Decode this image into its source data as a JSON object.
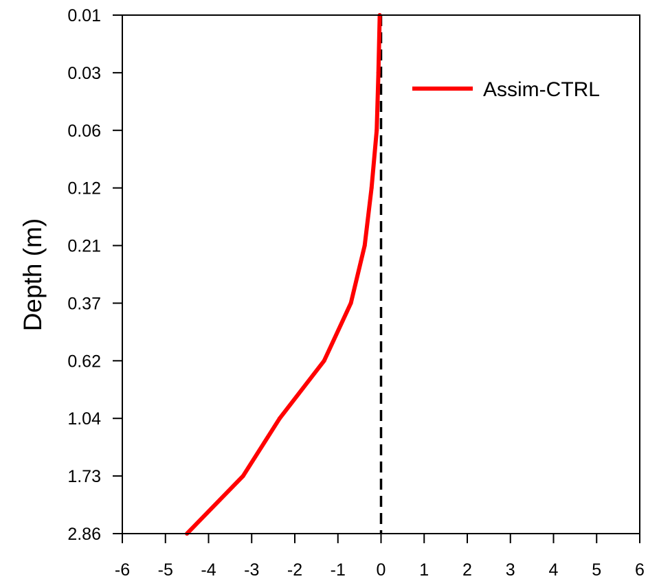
{
  "chart_data": {
    "type": "line",
    "title": "",
    "xlabel": "",
    "ylabel": "Depth (m)",
    "xlim": [
      -6,
      6
    ],
    "x_ticks": [
      "-6",
      "-5",
      "-4",
      "-3",
      "-2",
      "-1",
      "0",
      "1",
      "2",
      "3",
      "4",
      "5",
      "6"
    ],
    "y_ticks": [
      "0.01",
      "0.03",
      "0.06",
      "0.12",
      "0.21",
      "0.37",
      "0.62",
      "1.04",
      "1.73",
      "2.86"
    ],
    "y_axis_inverted": true,
    "y_scale": "categorical soil layer depths",
    "grid": false,
    "legend_position": "top-right",
    "series": [
      {
        "name": "Assim-CTRL",
        "color": "#ff0000",
        "depth": [
          "0.01",
          "0.03",
          "0.06",
          "0.12",
          "0.21",
          "0.37",
          "0.62",
          "1.04",
          "1.73",
          "2.86"
        ],
        "values": [
          -0.03,
          -0.06,
          -0.1,
          -0.22,
          -0.38,
          -0.7,
          -1.32,
          -2.35,
          -3.2,
          -4.5
        ]
      }
    ],
    "reference_lines": [
      {
        "orientation": "vertical",
        "x": 0,
        "style": "dashed",
        "color": "#000000"
      }
    ]
  }
}
